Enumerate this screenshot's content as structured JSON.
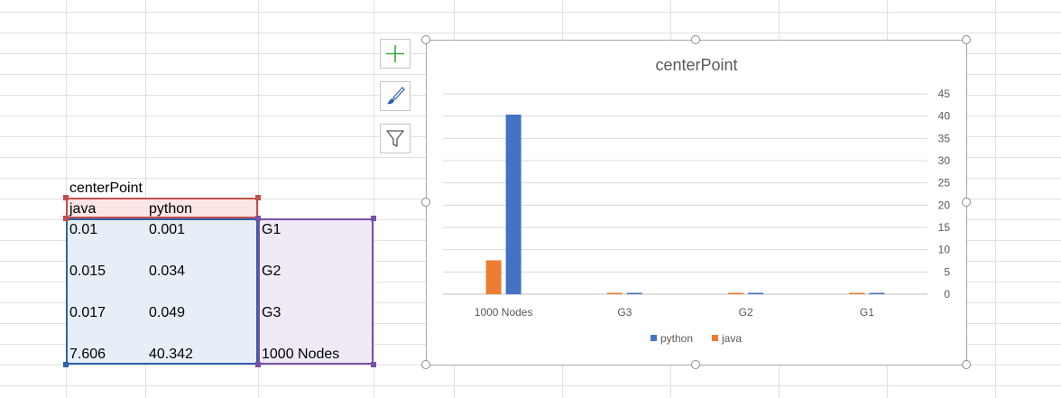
{
  "sheet": {
    "title_cell": "centerPoint",
    "header": [
      "java",
      "python"
    ],
    "rows": [
      {
        "java": "0.01",
        "python": "0.001",
        "label": "G1"
      },
      {
        "java": "0.015",
        "python": "0.034",
        "label": "G2"
      },
      {
        "java": "0.017",
        "python": "0.049",
        "label": "G3"
      },
      {
        "java": "7.606",
        "python": "40.342",
        "label": "1000 Nodes"
      }
    ]
  },
  "chart_tools": {
    "add_element": "plus-icon",
    "styles": "brush-icon",
    "filter": "filter-icon"
  },
  "chart_data": {
    "type": "bar",
    "title": "centerPoint",
    "categories": [
      "1000 Nodes",
      "G3",
      "G2",
      "G1"
    ],
    "series": [
      {
        "name": "python",
        "values": [
          40.342,
          0.049,
          0.034,
          0.001
        ],
        "color": "#4472c4"
      },
      {
        "name": "java",
        "values": [
          7.606,
          0.017,
          0.015,
          0.01
        ],
        "color": "#ed7d31"
      }
    ],
    "ylim": [
      0,
      45
    ],
    "yticks": [
      0,
      5,
      10,
      15,
      20,
      25,
      30,
      35,
      40,
      45
    ],
    "y_axis_side": "right",
    "grid": true,
    "legend": {
      "placement": "bottom",
      "order": [
        "python",
        "java"
      ]
    }
  }
}
